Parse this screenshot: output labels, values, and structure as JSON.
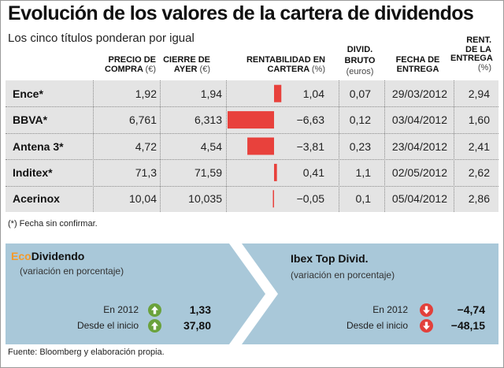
{
  "title": "Evolución de los valores de la cartera de dividendos",
  "subtitle": "Los cinco títulos ponderan por igual",
  "headers": {
    "precio_compra": [
      "PRECIO DE",
      "COMPRA"
    ],
    "precio_compra_unit": "(€)",
    "cierre_ayer": [
      "CIERRE DE",
      "AYER"
    ],
    "cierre_ayer_unit": "(€)",
    "rentabilidad": [
      "RENTABILIDAD EN",
      "CARTERA"
    ],
    "rentabilidad_unit": "(%)",
    "divid_bruto": "DIVID. BRUTO",
    "divid_bruto_unit": "(euros)",
    "fecha": [
      "FECHA DE",
      "ENTREGA"
    ],
    "rent_entrega": [
      "RENT.",
      "DE LA",
      "ENTREGA"
    ],
    "rent_entrega_unit": "(%)"
  },
  "chart_data": {
    "type": "table",
    "columns": [
      "",
      "PRECIO DE COMPRA (€)",
      "CIERRE DE AYER (€)",
      "RENTABILIDAD EN CARTERA (%)",
      "DIVID. BRUTO (euros)",
      "FECHA DE ENTREGA",
      "RENT. DE LA ENTREGA (%)"
    ],
    "rows": [
      {
        "name": "Ence*",
        "compra": "1,92",
        "cierre": "1,94",
        "rent": 1.04,
        "rent_label": "1,04",
        "divid": "0,07",
        "fecha": "29/03/2012",
        "rent_entrega": "2,94"
      },
      {
        "name": "BBVA*",
        "compra": "6,761",
        "cierre": "6,313",
        "rent": -6.63,
        "rent_label": "−6,63",
        "divid": "0,12",
        "fecha": "03/04/2012",
        "rent_entrega": "1,60"
      },
      {
        "name": "Antena 3*",
        "compra": "4,72",
        "cierre": "4,54",
        "rent": -3.81,
        "rent_label": "−3,81",
        "divid": "0,23",
        "fecha": "23/04/2012",
        "rent_entrega": "2,41"
      },
      {
        "name": "Inditex*",
        "compra": "71,3",
        "cierre": "71,59",
        "rent": 0.41,
        "rent_label": "0,41",
        "divid": "1,1",
        "fecha": "02/05/2012",
        "rent_entrega": "2,62"
      },
      {
        "name": "Acerinox",
        "compra": "10,04",
        "cierre": "10,035",
        "rent": -0.05,
        "rent_label": "−0,05",
        "divid": "0,1",
        "fecha": "05/04/2012",
        "rent_entrega": "2,86"
      }
    ],
    "bar_color": "#e8413c"
  },
  "footnote": "(*) Fecha sin confirmar.",
  "panels": {
    "left": {
      "brand": "Eco",
      "title": "Dividendo",
      "sub": "(variación en porcentaje)",
      "rows": [
        {
          "label": "En 2012",
          "value": "1,33",
          "direction": "up"
        },
        {
          "label": "Desde el inicio",
          "value": "37,80",
          "direction": "up"
        }
      ]
    },
    "right": {
      "title": "Ibex Top Divid.",
      "sub": "(variación en porcentaje)",
      "rows": [
        {
          "label": "En 2012",
          "value": "−4,74",
          "direction": "down"
        },
        {
          "label": "Desde el inicio",
          "value": "−48,15",
          "direction": "down"
        }
      ]
    }
  },
  "source": "Fuente: Bloomberg y elaboración propia.",
  "colors": {
    "panel_bg": "#a9c8d9",
    "brand_orange": "#f39a2b",
    "up_green": "#6aa23c",
    "down_red": "#e2403b",
    "table_bg": "#e4e4e4"
  }
}
